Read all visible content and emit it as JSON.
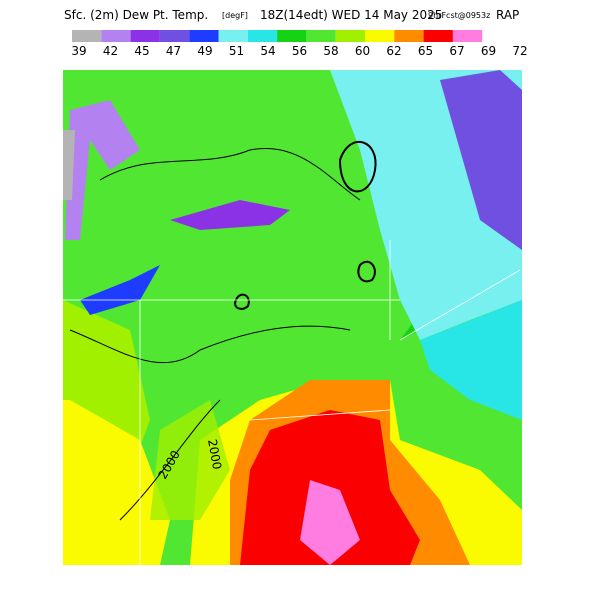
{
  "header": {
    "title": "Sfc. (2m) Dew Pt. Temp.",
    "units": "[degF]",
    "valid": "18Z(14edt) WED 14 May 2025",
    "forecast": "9hrFcst@0953z",
    "model": "RAP"
  },
  "legend": {
    "labels": [
      "39",
      "42",
      "45",
      "47",
      "49",
      "51",
      "54",
      "56",
      "58",
      "60",
      "62",
      "65",
      "67",
      "69",
      "72"
    ],
    "colors": [
      "#b4b4b4",
      "#b482f0",
      "#8c32e6",
      "#7050e0",
      "#1e3cff",
      "#78f0f0",
      "#28e6e6",
      "#14d214",
      "#50e632",
      "#a0f000",
      "#fafa00",
      "#ff8c00",
      "#fa0000",
      "#ff7ce0"
    ]
  },
  "map": {
    "contour_labels": [
      "2000",
      "2000"
    ]
  }
}
